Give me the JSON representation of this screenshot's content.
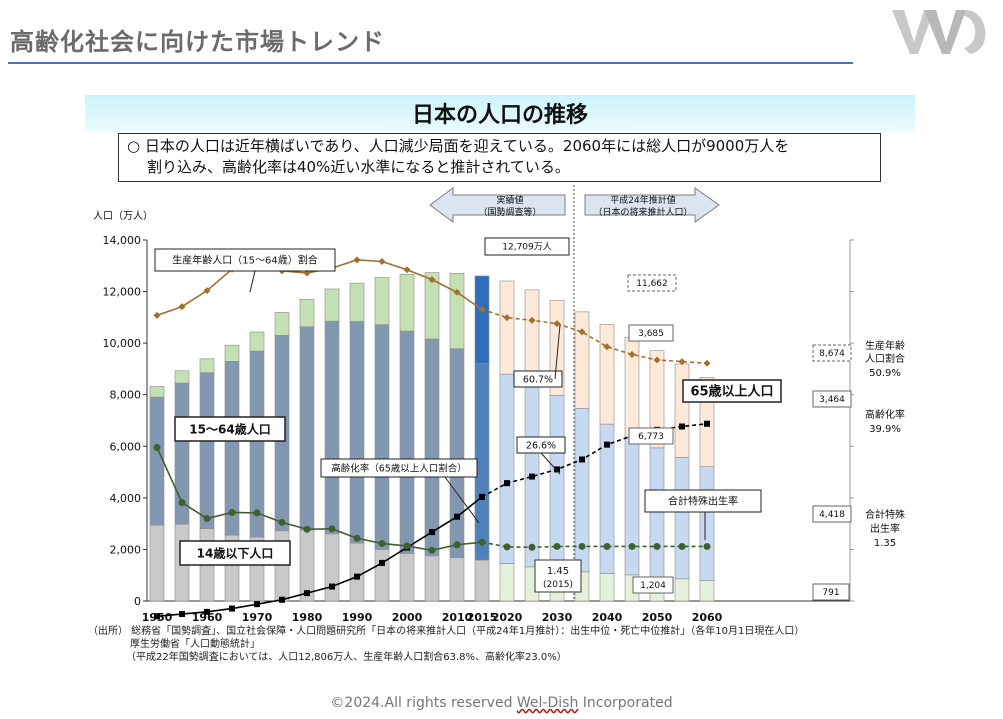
{
  "header": {
    "title": "高齢化社会に向けた市場トレンド"
  },
  "banner": {
    "title": "日本の人口の推移"
  },
  "summary": {
    "line1": "○ 日本の人口は近年横ばいであり、人口減少局面を迎えている。2060年には総人口が9000万人を",
    "line2": "割り込み、高齢化率は40%近い水準になると推計されている。"
  },
  "chart_data": {
    "type": "bar",
    "stacked": true,
    "title": "日本の人口の推移",
    "ylabel": "人口（万人）",
    "ylim": [
      0,
      14000
    ],
    "y_ticks": [
      "0",
      "2,000",
      "4,000",
      "6,000",
      "8,000",
      "10,000",
      "12,000",
      "14,000"
    ],
    "x_tick_labels": [
      "1950",
      "1960",
      "1970",
      "1980",
      "1990",
      "2000",
      "2010",
      "2015",
      "2020",
      "2030",
      "2040",
      "2050",
      "2060"
    ],
    "categories": [
      1950,
      1955,
      1960,
      1965,
      1970,
      1975,
      1980,
      1985,
      1990,
      1995,
      2000,
      2005,
      2010,
      2015,
      2020,
      2025,
      2030,
      2035,
      2040,
      2045,
      2050,
      2055,
      2060
    ],
    "projection_start": 2020,
    "series": [
      {
        "name": "14歳以下人口",
        "values": [
          2943,
          2980,
          2807,
          2553,
          2482,
          2722,
          2751,
          2603,
          2249,
          2001,
          1847,
          1752,
          1680,
          1589,
          1457,
          1324,
          1204,
          1129,
          1073,
          1012,
          939,
          861,
          791
        ]
      },
      {
        "name": "15〜64歳人口",
        "values": [
          4966,
          5473,
          6047,
          6744,
          7212,
          7581,
          7883,
          8251,
          8590,
          8717,
          8622,
          8409,
          8103,
          7629,
          7341,
          7084,
          6773,
          6343,
          5787,
          5353,
          5001,
          4706,
          4418
        ]
      },
      {
        "name": "65歳以上人口",
        "values": [
          411,
          475,
          540,
          624,
          739,
          887,
          1065,
          1247,
          1489,
          1828,
          2204,
          2576,
          2925,
          3387,
          3612,
          3657,
          3685,
          3741,
          3868,
          3856,
          3768,
          3626,
          3464
        ]
      }
    ],
    "line_series": [
      {
        "name": "生産年齢人口（15〜64歳）割合",
        "unit": "%",
        "axis": "right",
        "values": [
          59.6,
          61.2,
          64.1,
          68.0,
          69.0,
          67.7,
          67.3,
          68.2,
          69.7,
          69.4,
          67.9,
          66.1,
          63.8,
          60.7,
          59.2,
          58.7,
          58.1,
          56.6,
          53.9,
          52.5,
          51.5,
          51.2,
          50.9
        ]
      },
      {
        "name": "高齢化率（65歳以上人口割合）",
        "unit": "%",
        "axis": "right",
        "values": [
          4.9,
          5.3,
          5.7,
          6.3,
          7.1,
          7.9,
          9.1,
          10.3,
          12.1,
          14.6,
          17.4,
          20.2,
          23.0,
          26.6,
          29.1,
          30.3,
          31.6,
          33.4,
          36.1,
          37.7,
          38.8,
          39.4,
          39.9
        ]
      },
      {
        "name": "合計特殊出生率",
        "unit": "",
        "axis": "right",
        "values": [
          3.65,
          2.37,
          2.0,
          2.14,
          2.13,
          1.91,
          1.75,
          1.76,
          1.54,
          1.42,
          1.36,
          1.26,
          1.39,
          1.45,
          1.34,
          1.33,
          1.35,
          1.35,
          1.35,
          1.35,
          1.35,
          1.35,
          1.35
        ]
      }
    ],
    "labels": {
      "actual": "実績値",
      "actual_sub": "（国勢調査等）",
      "projected": "平成24年推計値",
      "projected_sub": "（日本の将来推計人口）",
      "working_ratio": "生産年齢人口（15〜64歳）割合",
      "working_pop": "15〜64歳人口",
      "elderly_pop": "65歳以上人口",
      "aging_rate": "高齢化率（65歳以上人口割合）",
      "tfr": "合計特殊出生率",
      "child_pop": "14歳以下人口",
      "total_2010": "12,709万人",
      "pct_2015_working": "60.7%",
      "pct_2015_aging": "26.6%",
      "tfr_2015": "1.45",
      "tfr_2015_year": "(2015)",
      "val_2030_total": "11,662",
      "val_2030_elderly": "3,685",
      "val_2030_working": "6,773",
      "val_2030_child": "1,204",
      "val_2060_total": "8,674",
      "val_2060_elderly": "3,464",
      "val_2060_working": "4,418",
      "val_2060_child": "791",
      "right_working_1": "生産年齢",
      "right_working_2": "人口割合",
      "right_working_3": "50.9%",
      "right_aging_1": "高齢化率",
      "right_aging_2": "39.9%",
      "right_tfr_1": "合計特殊",
      "right_tfr_2": "出生率",
      "right_tfr_3": "1.35"
    },
    "colors": {
      "child_actual": "#c9c9c9",
      "child_proj": "#e4f0d9",
      "working_actual": "#8497b0",
      "working_proj": "#c6d9f1",
      "elderly_actual": "#c5e0b4",
      "elderly_proj": "#fde9d9",
      "highlight_working": "#4f81bd",
      "highlight_elderly": "#2f6eba",
      "working_ratio_line": "#a07030",
      "aging_line": "#000000",
      "tfr_line": "#3f5f2f"
    }
  },
  "sources": {
    "line1": "（出所） 総務省「国勢調査」、国立社会保障・人口問題研究所「日本の将来推計人口（平成24年1月推計）：出生中位・死亡中位推計」（各年10月1日現在人口）",
    "line2": "厚生労働省「人口動態統計」",
    "line3": "（平成22年国勢調査においては、人口12,806万人、生産年齢人口割合63.8%、高齢化率23.0%）"
  },
  "footer": {
    "prefix": "©2024.All rights reserved ",
    "brand": "Wel-Dish",
    "suffix": " Incorporated"
  }
}
